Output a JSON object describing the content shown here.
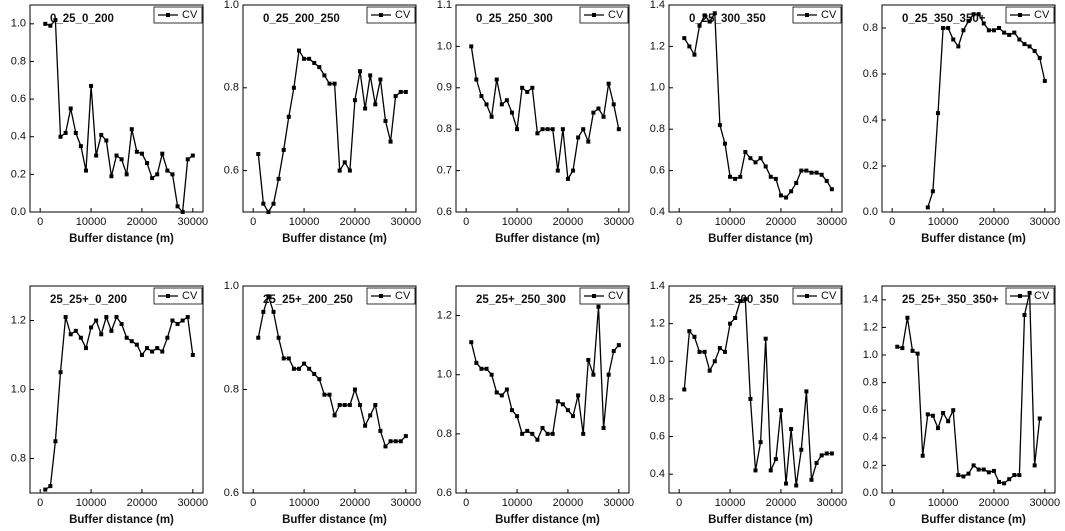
{
  "chart_data": [
    {
      "type": "line",
      "title": "0_25_0_200",
      "x_label": "Buffer distance (m)",
      "x": [
        1000,
        2000,
        3000,
        4000,
        5000,
        6000,
        7000,
        8000,
        9000,
        10000,
        11000,
        12000,
        13000,
        14000,
        15000,
        16000,
        17000,
        18000,
        19000,
        20000,
        21000,
        22000,
        23000,
        24000,
        25000,
        26000,
        27000,
        28000,
        29000,
        30000
      ],
      "series": [
        {
          "name": "CV",
          "color": "#000000",
          "values": [
            1.0,
            0.99,
            1.02,
            0.4,
            0.42,
            0.55,
            0.42,
            0.35,
            0.22,
            0.67,
            0.3,
            0.41,
            0.38,
            0.19,
            0.3,
            0.28,
            0.2,
            0.44,
            0.32,
            0.31,
            0.26,
            0.18,
            0.2,
            0.31,
            0.22,
            0.2,
            0.03,
            0.0,
            0.28,
            0.3
          ]
        }
      ],
      "xlim": [
        -2000,
        32000
      ],
      "xticks": [
        0,
        10000,
        20000,
        30000
      ],
      "ylim": [
        0,
        1.1
      ],
      "yticks": [
        {
          "value": 0,
          "label": "0.0"
        },
        0.2,
        0.4,
        0.6,
        0.8,
        {
          "value": 1,
          "label": "1.0"
        }
      ]
    },
    {
      "type": "line",
      "title": "0_25_200_250",
      "x_label": "Buffer distance (m)",
      "x": [
        1000,
        2000,
        3000,
        4000,
        5000,
        6000,
        7000,
        8000,
        9000,
        10000,
        11000,
        12000,
        13000,
        14000,
        15000,
        16000,
        17000,
        18000,
        19000,
        20000,
        21000,
        22000,
        23000,
        24000,
        25000,
        26000,
        27000,
        28000,
        29000,
        30000
      ],
      "series": [
        {
          "name": "CV",
          "color": "#000000",
          "values": [
            0.64,
            0.52,
            0.5,
            0.52,
            0.58,
            0.65,
            0.73,
            0.8,
            0.89,
            0.87,
            0.87,
            0.86,
            0.85,
            0.83,
            0.81,
            0.81,
            0.6,
            0.62,
            0.6,
            0.77,
            0.84,
            0.75,
            0.83,
            0.76,
            0.82,
            0.72,
            0.67,
            0.78,
            0.79,
            0.79
          ]
        }
      ],
      "xlim": [
        -2000,
        32000
      ],
      "xticks": [
        0,
        10000,
        20000,
        30000
      ],
      "ylim": [
        0.5,
        1.0
      ],
      "yticks": [
        0.6,
        0.8,
        {
          "value": 1,
          "label": "1.0"
        }
      ]
    },
    {
      "type": "line",
      "title": "0_25_250_300",
      "x_label": "Buffer distance (m)",
      "x": [
        1000,
        2000,
        3000,
        4000,
        5000,
        6000,
        7000,
        8000,
        9000,
        10000,
        11000,
        12000,
        13000,
        14000,
        15000,
        16000,
        17000,
        18000,
        19000,
        20000,
        21000,
        22000,
        23000,
        24000,
        25000,
        26000,
        27000,
        28000,
        29000,
        30000
      ],
      "series": [
        {
          "name": "CV",
          "color": "#000000",
          "values": [
            1.0,
            0.92,
            0.88,
            0.86,
            0.83,
            0.92,
            0.86,
            0.87,
            0.84,
            0.8,
            0.9,
            0.89,
            0.9,
            0.79,
            0.8,
            0.8,
            0.8,
            0.7,
            0.8,
            0.68,
            0.7,
            0.78,
            0.8,
            0.77,
            0.84,
            0.85,
            0.83,
            0.91,
            0.86,
            0.8
          ]
        }
      ],
      "xlim": [
        -2000,
        32000
      ],
      "xticks": [
        0,
        10000,
        20000,
        30000
      ],
      "ylim": [
        0.6,
        1.1
      ],
      "yticks": [
        0.6,
        0.7,
        0.8,
        0.9,
        {
          "value": 1,
          "label": "1.0"
        },
        1.1
      ]
    },
    {
      "type": "line",
      "title": "0_25_300_350",
      "x_label": "Buffer distance (m)",
      "x": [
        1000,
        2000,
        3000,
        4000,
        5000,
        6000,
        7000,
        8000,
        9000,
        10000,
        11000,
        12000,
        13000,
        14000,
        15000,
        16000,
        17000,
        18000,
        19000,
        20000,
        21000,
        22000,
        23000,
        24000,
        25000,
        26000,
        27000,
        28000,
        29000,
        30000
      ],
      "series": [
        {
          "name": "CV",
          "color": "#000000",
          "values": [
            1.24,
            1.2,
            1.16,
            1.3,
            1.35,
            1.32,
            1.36,
            0.82,
            0.73,
            0.57,
            0.56,
            0.57,
            0.69,
            0.66,
            0.64,
            0.66,
            0.62,
            0.57,
            0.56,
            0.48,
            0.47,
            0.5,
            0.54,
            0.6,
            0.6,
            0.59,
            0.59,
            0.58,
            0.55,
            0.51
          ]
        }
      ],
      "xlim": [
        -2000,
        32000
      ],
      "xticks": [
        0,
        10000,
        20000,
        30000
      ],
      "ylim": [
        0.4,
        1.4
      ],
      "yticks": [
        0.4,
        0.6,
        0.8,
        {
          "value": 1,
          "label": "1.0"
        },
        1.2,
        1.4
      ]
    },
    {
      "type": "line",
      "title": "0_25_350_350+",
      "x_label": "Buffer distance (m)",
      "x": [
        7000,
        8000,
        9000,
        10000,
        11000,
        12000,
        13000,
        14000,
        15000,
        16000,
        17000,
        18000,
        19000,
        20000,
        21000,
        22000,
        23000,
        24000,
        25000,
        26000,
        27000,
        28000,
        29000,
        30000
      ],
      "series": [
        {
          "name": "CV",
          "color": "#000000",
          "values": [
            0.02,
            0.09,
            0.43,
            0.8,
            0.8,
            0.75,
            0.72,
            0.79,
            0.83,
            0.86,
            0.86,
            0.82,
            0.79,
            0.79,
            0.8,
            0.78,
            0.77,
            0.78,
            0.75,
            0.73,
            0.72,
            0.7,
            0.67,
            0.57
          ]
        }
      ],
      "xlim": [
        -2000,
        32000
      ],
      "xticks": [
        0,
        10000,
        20000,
        30000
      ],
      "ylim": [
        0,
        0.9
      ],
      "yticks": [
        {
          "value": 0,
          "label": "0.0"
        },
        0.2,
        0.4,
        0.6,
        0.8
      ]
    },
    {
      "type": "line",
      "title": "25_25+_0_200",
      "x_label": "Buffer distance (m)",
      "x": [
        1000,
        2000,
        3000,
        4000,
        5000,
        6000,
        7000,
        8000,
        9000,
        10000,
        11000,
        12000,
        13000,
        14000,
        15000,
        16000,
        17000,
        18000,
        19000,
        20000,
        21000,
        22000,
        23000,
        24000,
        25000,
        26000,
        27000,
        28000,
        29000,
        30000
      ],
      "series": [
        {
          "name": "CV",
          "color": "#000000",
          "values": [
            0.71,
            0.72,
            0.85,
            1.05,
            1.21,
            1.16,
            1.17,
            1.15,
            1.12,
            1.18,
            1.2,
            1.16,
            1.21,
            1.17,
            1.21,
            1.19,
            1.15,
            1.14,
            1.13,
            1.1,
            1.12,
            1.11,
            1.12,
            1.11,
            1.15,
            1.2,
            1.19,
            1.2,
            1.21,
            1.1
          ]
        }
      ],
      "xlim": [
        -2000,
        32000
      ],
      "xticks": [
        0,
        10000,
        20000,
        30000
      ],
      "ylim": [
        0.7,
        1.3
      ],
      "yticks": [
        0.8,
        {
          "value": 1,
          "label": "1.0"
        },
        1.2
      ]
    },
    {
      "type": "line",
      "title": "25_25+_200_250",
      "x_label": "Buffer distance (m)",
      "x": [
        1000,
        2000,
        3000,
        4000,
        5000,
        6000,
        7000,
        8000,
        9000,
        10000,
        11000,
        12000,
        13000,
        14000,
        15000,
        16000,
        17000,
        18000,
        19000,
        20000,
        21000,
        22000,
        23000,
        24000,
        25000,
        26000,
        27000,
        28000,
        29000,
        30000
      ],
      "series": [
        {
          "name": "CV",
          "color": "#000000",
          "values": [
            0.9,
            0.95,
            0.98,
            0.95,
            0.9,
            0.86,
            0.86,
            0.84,
            0.84,
            0.85,
            0.84,
            0.83,
            0.82,
            0.79,
            0.79,
            0.75,
            0.77,
            0.77,
            0.77,
            0.8,
            0.77,
            0.73,
            0.75,
            0.77,
            0.72,
            0.69,
            0.7,
            0.7,
            0.7,
            0.71
          ]
        }
      ],
      "xlim": [
        -2000,
        32000
      ],
      "xticks": [
        0,
        10000,
        20000,
        30000
      ],
      "ylim": [
        0.6,
        1.0
      ],
      "yticks": [
        0.6,
        0.8,
        {
          "value": 1,
          "label": "1.0"
        }
      ]
    },
    {
      "type": "line",
      "title": "25_25+_250_300",
      "x_label": "Buffer distance (m)",
      "x": [
        1000,
        2000,
        3000,
        4000,
        5000,
        6000,
        7000,
        8000,
        9000,
        10000,
        11000,
        12000,
        13000,
        14000,
        15000,
        16000,
        17000,
        18000,
        19000,
        20000,
        21000,
        22000,
        23000,
        24000,
        25000,
        26000,
        27000,
        28000,
        29000,
        30000
      ],
      "series": [
        {
          "name": "CV",
          "color": "#000000",
          "values": [
            1.11,
            1.04,
            1.02,
            1.02,
            1.0,
            0.94,
            0.93,
            0.95,
            0.88,
            0.86,
            0.8,
            0.81,
            0.8,
            0.78,
            0.82,
            0.8,
            0.8,
            0.91,
            0.9,
            0.88,
            0.86,
            0.93,
            0.8,
            1.05,
            1.0,
            1.23,
            0.82,
            1.0,
            1.08,
            1.1
          ]
        }
      ],
      "xlim": [
        -2000,
        32000
      ],
      "xticks": [
        0,
        10000,
        20000,
        30000
      ],
      "ylim": [
        0.6,
        1.3
      ],
      "yticks": [
        0.6,
        0.8,
        {
          "value": 1,
          "label": "1.0"
        },
        1.2
      ]
    },
    {
      "type": "line",
      "title": "25_25+_300_350",
      "x_label": "Buffer distance (m)",
      "x": [
        1000,
        2000,
        3000,
        4000,
        5000,
        6000,
        7000,
        8000,
        9000,
        10000,
        11000,
        12000,
        13000,
        14000,
        15000,
        16000,
        17000,
        18000,
        19000,
        20000,
        21000,
        22000,
        23000,
        24000,
        25000,
        26000,
        27000,
        28000,
        29000,
        30000
      ],
      "series": [
        {
          "name": "CV",
          "color": "#000000",
          "values": [
            0.85,
            1.16,
            1.13,
            1.05,
            1.05,
            0.95,
            1.0,
            1.07,
            1.05,
            1.2,
            1.23,
            1.32,
            1.33,
            0.8,
            0.42,
            0.57,
            1.12,
            0.42,
            0.48,
            0.74,
            0.35,
            0.64,
            0.34,
            0.53,
            0.84,
            0.37,
            0.46,
            0.5,
            0.51,
            0.51
          ]
        }
      ],
      "xlim": [
        -2000,
        32000
      ],
      "xticks": [
        0,
        10000,
        20000,
        30000
      ],
      "ylim": [
        0.3,
        1.4
      ],
      "yticks": [
        0.4,
        0.6,
        0.8,
        {
          "value": 1,
          "label": "1.0"
        },
        1.2,
        1.4
      ]
    },
    {
      "type": "line",
      "title": "25_25+_350_350+",
      "x_label": "Buffer distance (m)",
      "x": [
        1000,
        2000,
        3000,
        4000,
        5000,
        6000,
        7000,
        8000,
        9000,
        10000,
        11000,
        12000,
        13000,
        14000,
        15000,
        16000,
        17000,
        18000,
        19000,
        20000,
        21000,
        22000,
        23000,
        24000,
        25000,
        26000,
        27000,
        28000,
        29000
      ],
      "series": [
        {
          "name": "CV",
          "color": "#000000",
          "values": [
            1.06,
            1.05,
            1.27,
            1.03,
            1.01,
            0.27,
            0.57,
            0.56,
            0.47,
            0.58,
            0.52,
            0.6,
            0.13,
            0.12,
            0.14,
            0.2,
            0.17,
            0.17,
            0.15,
            0.16,
            0.08,
            0.07,
            0.1,
            0.13,
            0.13,
            1.29,
            1.45,
            0.2,
            0.54
          ]
        }
      ],
      "xlim": [
        -2000,
        32000
      ],
      "xticks": [
        0,
        10000,
        20000,
        30000
      ],
      "ylim": [
        0,
        1.5
      ],
      "yticks": [
        {
          "value": 0,
          "label": "0.0"
        },
        0.2,
        0.4,
        0.6,
        0.8,
        {
          "value": 1,
          "label": "1.0"
        },
        1.2,
        1.4
      ]
    }
  ]
}
